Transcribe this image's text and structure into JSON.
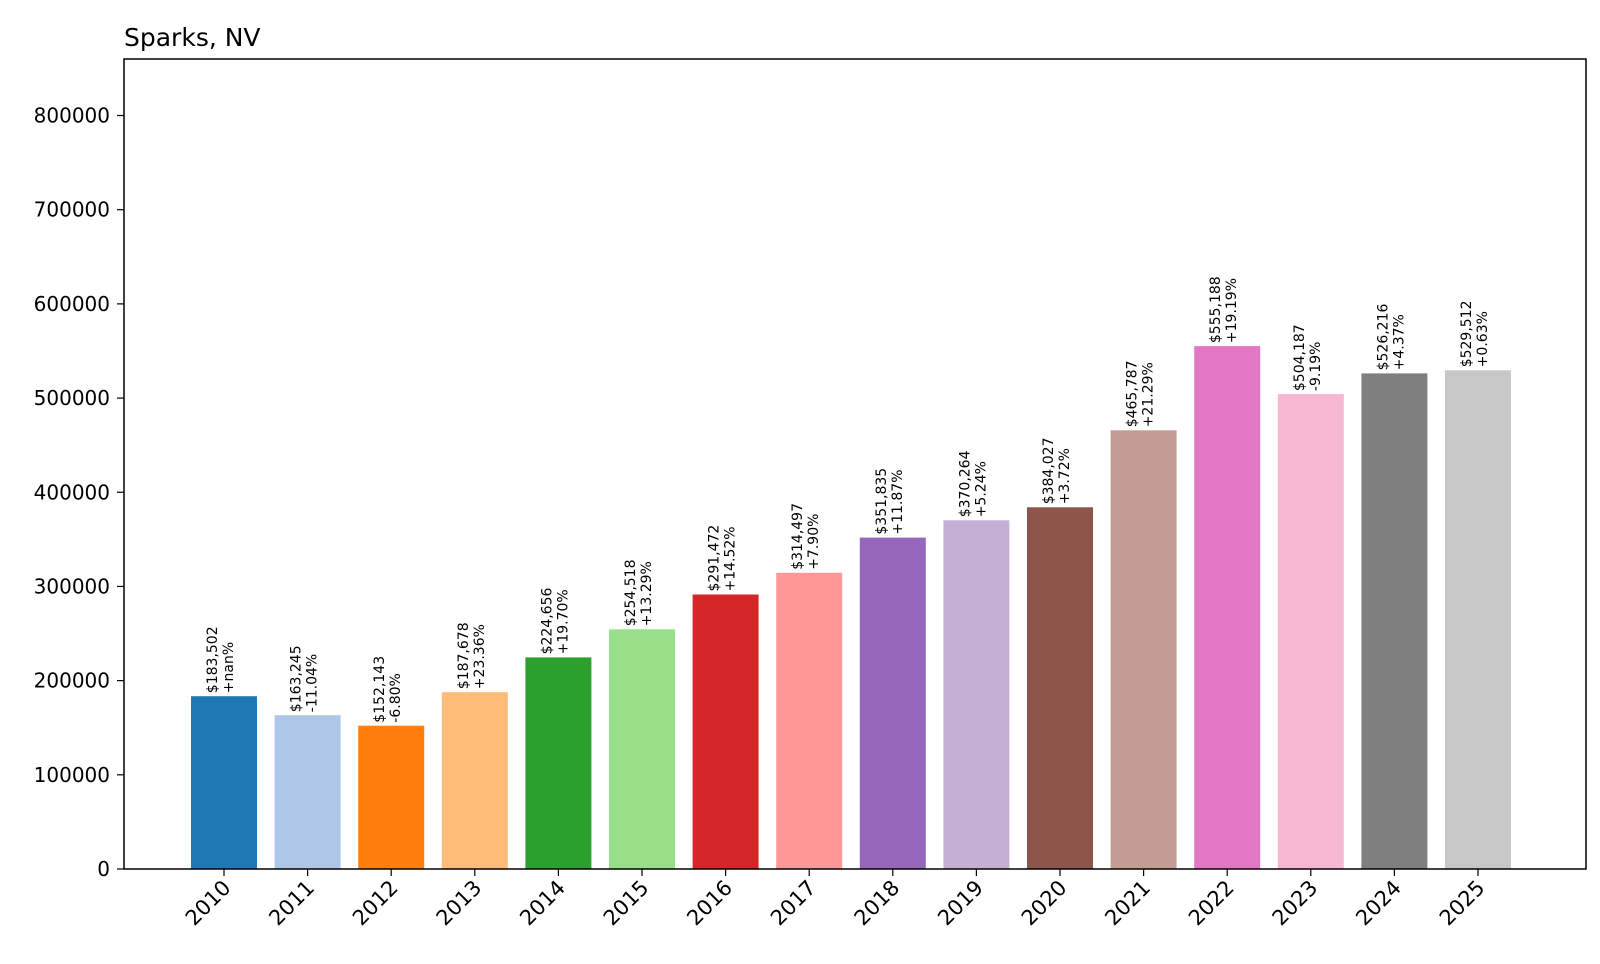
{
  "chart_data": {
    "type": "bar",
    "title": "Sparks, NV",
    "xlabel": "",
    "ylabel": "",
    "ylim": [
      0,
      860000
    ],
    "yticks": [
      0,
      100000,
      200000,
      300000,
      400000,
      500000,
      600000,
      700000,
      800000
    ],
    "ytick_labels": [
      "0",
      "100000",
      "200000",
      "300000",
      "400000",
      "500000",
      "600000",
      "700000",
      "800000"
    ],
    "grid": false,
    "legend": "none",
    "categories": [
      "2010",
      "2011",
      "2012",
      "2013",
      "2014",
      "2015",
      "2016",
      "2017",
      "2018",
      "2019",
      "2020",
      "2021",
      "2022",
      "2023",
      "2024",
      "2025"
    ],
    "values": [
      183502,
      163245,
      152143,
      187678,
      224656,
      254518,
      291472,
      314497,
      351835,
      370264,
      384027,
      465787,
      555188,
      504187,
      526216,
      529512
    ],
    "value_labels": [
      "$183,502",
      "$163,245",
      "$152,143",
      "$187,678",
      "$224,656",
      "$254,518",
      "$291,472",
      "$314,497",
      "$351,835",
      "$370,264",
      "$384,027",
      "$465,787",
      "$555,188",
      "$504,187",
      "$526,216",
      "$529,512"
    ],
    "change_labels": [
      "+nan%",
      "-11.04%",
      "-6.80%",
      "+23.36%",
      "+19.70%",
      "+13.29%",
      "+14.52%",
      "+7.90%",
      "+11.87%",
      "+5.24%",
      "+3.72%",
      "+21.29%",
      "+19.19%",
      "-9.19%",
      "+4.37%",
      "+0.63%"
    ],
    "colors": [
      "#1f77b4",
      "#aec7e8",
      "#ff7f0e",
      "#ffbb78",
      "#2ca02c",
      "#98df8a",
      "#d62728",
      "#ff9896",
      "#9467bd",
      "#c5b0d5",
      "#8c564b",
      "#c49c94",
      "#e377c2",
      "#f7b6d2",
      "#7f7f7f",
      "#c7c7c7"
    ]
  }
}
